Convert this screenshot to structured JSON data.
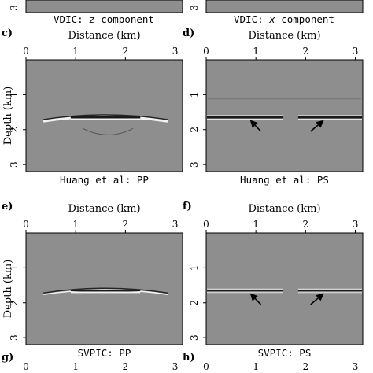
{
  "top_row": {
    "left_caption": {
      "prefix": "VDIC: ",
      "italic": "z",
      "suffix": "-component"
    },
    "right_caption": {
      "prefix": "VDIC: ",
      "italic": "x",
      "suffix": "-component"
    },
    "tick_3": "3"
  },
  "panels": [
    {
      "letter": "c)",
      "caption": "Huang et al: PP",
      "type": "PP"
    },
    {
      "letter": "d)",
      "caption": "Huang et al: PS",
      "type": "PS"
    },
    {
      "letter": "e)",
      "caption": "SVPIC: PP",
      "type": "PP"
    },
    {
      "letter": "f)",
      "caption": "SVPIC: PS",
      "type": "PS"
    }
  ],
  "bottom_row": {
    "left_letter": "g)",
    "right_letter": "h)",
    "x_ticks": [
      "0",
      "1",
      "2",
      "3"
    ]
  },
  "axes": {
    "xlabel": "Distance (km)",
    "ylabel": "Depth (km)",
    "x_ticks": [
      "0",
      "1",
      "2",
      "3"
    ],
    "y_ticks": [
      "1",
      "2",
      "3"
    ]
  },
  "colors": {
    "panel_gray": "#8e8e8e",
    "reflector_dark": "#1a1a1a",
    "reflector_light": "#f2f2f2"
  }
}
